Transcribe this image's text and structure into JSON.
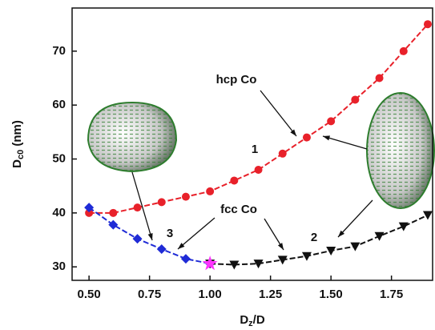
{
  "chart_data": {
    "type": "line",
    "xlabel": [
      "D",
      "z",
      "/D"
    ],
    "ylabel": [
      "D",
      "c0",
      " (nm)"
    ],
    "xlim": [
      0.43,
      1.92
    ],
    "ylim": [
      27.5,
      78
    ],
    "xticks": [
      {
        "value": 0.5,
        "label": "0.50"
      },
      {
        "value": 0.75,
        "label": "0.75"
      },
      {
        "value": 1,
        "label": "1.00"
      },
      {
        "value": 1.25,
        "label": "1.25"
      },
      {
        "value": 1.5,
        "label": "1.50"
      },
      {
        "value": 1.75,
        "label": "1.75"
      }
    ],
    "yticks": [
      30,
      40,
      50,
      60,
      70
    ],
    "series": [
      {
        "color": "#e8212a",
        "marker": "circle",
        "x": [
          0.5,
          0.6,
          0.7,
          0.8,
          0.9,
          1.0,
          1.1,
          1.2,
          1.3,
          1.4,
          1.5,
          1.6,
          1.7,
          1.8,
          1.9
        ],
        "values": [
          40,
          40,
          41,
          42,
          43,
          44,
          46,
          48,
          51,
          54,
          57,
          61,
          65,
          70,
          75
        ]
      },
      {
        "color": "#1f2bd6",
        "marker": "diamond",
        "x": [
          0.5,
          0.6,
          0.7,
          0.8,
          0.9,
          1.0
        ],
        "values": [
          41,
          37.8,
          35.2,
          33.3,
          31.5,
          30.6
        ]
      },
      {
        "color": "#111111",
        "marker": "triangle",
        "x": [
          1.0,
          1.1,
          1.2,
          1.3,
          1.4,
          1.5,
          1.6,
          1.7,
          1.8,
          1.9
        ],
        "values": [
          30.6,
          30.4,
          30.6,
          31.3,
          32,
          33,
          33.8,
          35.7,
          37.5,
          39.6
        ]
      },
      {
        "color": "#ff33ff",
        "marker": "star",
        "x": [
          1.0
        ],
        "values": [
          30.6
        ]
      }
    ],
    "annotations": [
      "hcp Co",
      "fcc Co",
      "1",
      "2",
      "3"
    ]
  }
}
